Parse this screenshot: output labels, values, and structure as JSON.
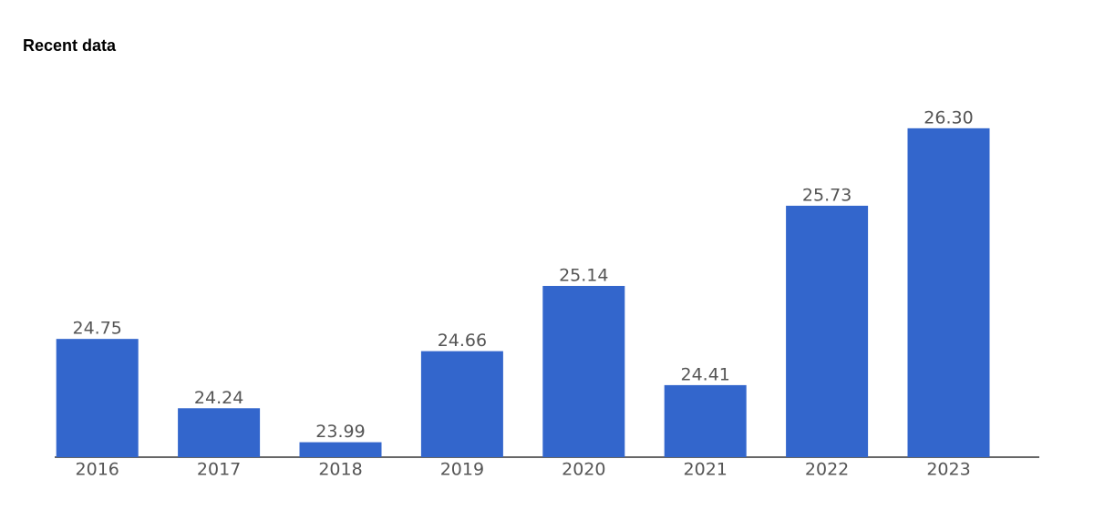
{
  "chart_data": {
    "type": "bar",
    "title": "Recent data",
    "categories": [
      "2016",
      "2017",
      "2018",
      "2019",
      "2020",
      "2021",
      "2022",
      "2023"
    ],
    "values": [
      24.75,
      24.24,
      23.99,
      24.66,
      25.14,
      24.41,
      25.73,
      26.3
    ],
    "value_labels": [
      "24.75",
      "24.24",
      "23.99",
      "24.66",
      "25.14",
      "24.41",
      "25.73",
      "26.30"
    ],
    "color": "#3366cc",
    "ylim": [
      23.88,
      26.5
    ]
  }
}
